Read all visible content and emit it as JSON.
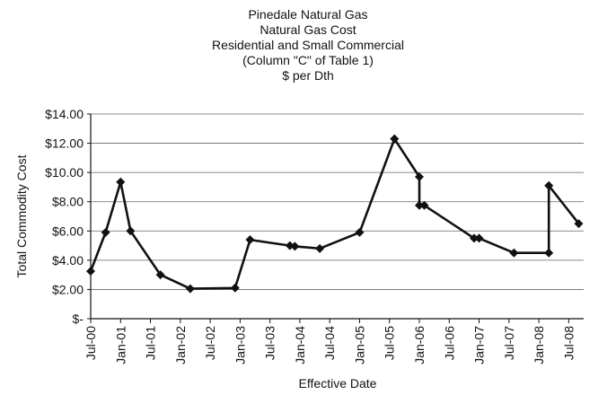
{
  "chart_data": {
    "type": "line",
    "title_lines": [
      "Pinedale Natural Gas",
      "Natural Gas Cost",
      "Residential and Small Commercial",
      "(Column \"C\" of Table 1)",
      "$ per Dth"
    ],
    "xlabel": "Effective Date",
    "ylabel": "Total Commodity Cost",
    "y_ticks": [
      "$-",
      "$2.00",
      "$4.00",
      "$6.00",
      "$8.00",
      "$10.00",
      "$12.00",
      "$14.00"
    ],
    "ylim": [
      0,
      14
    ],
    "x_tick_labels": [
      "Jul-00",
      "Jan-01",
      "Jul-01",
      "Jan-02",
      "Jul-02",
      "Jan-03",
      "Jul-03",
      "Jan-04",
      "Jul-04",
      "Jan-05",
      "Jul-05",
      "Jan-06",
      "Jul-06",
      "Jan-07",
      "Jul-07",
      "Jan-08",
      "Jul-08"
    ],
    "xlim": [
      "2000-07",
      "2008-10"
    ],
    "grid": true,
    "legend": "none",
    "series": [
      {
        "color": "#111111",
        "marker": "diamond",
        "points": [
          {
            "x": "2000-07",
            "y": 3.25
          },
          {
            "x": "2000-10",
            "y": 5.9
          },
          {
            "x": "2001-01",
            "y": 9.35
          },
          {
            "x": "2001-03",
            "y": 6.0
          },
          {
            "x": "2001-09",
            "y": 3.0
          },
          {
            "x": "2002-03",
            "y": 2.05
          },
          {
            "x": "2002-12",
            "y": 2.1
          },
          {
            "x": "2003-03",
            "y": 5.4
          },
          {
            "x": "2003-11",
            "y": 5.0
          },
          {
            "x": "2003-12",
            "y": 4.95
          },
          {
            "x": "2004-05",
            "y": 4.8
          },
          {
            "x": "2005-01",
            "y": 5.9
          },
          {
            "x": "2005-08",
            "y": 12.3
          },
          {
            "x": "2006-01",
            "y": 9.7
          },
          {
            "x": "2006-01",
            "y": 7.75
          },
          {
            "x": "2006-02",
            "y": 7.75
          },
          {
            "x": "2006-12",
            "y": 5.5
          },
          {
            "x": "2007-01",
            "y": 5.5
          },
          {
            "x": "2007-08",
            "y": 4.5
          },
          {
            "x": "2008-03",
            "y": 4.5
          },
          {
            "x": "2008-03",
            "y": 9.1
          },
          {
            "x": "2008-09",
            "y": 6.5
          }
        ]
      }
    ]
  }
}
